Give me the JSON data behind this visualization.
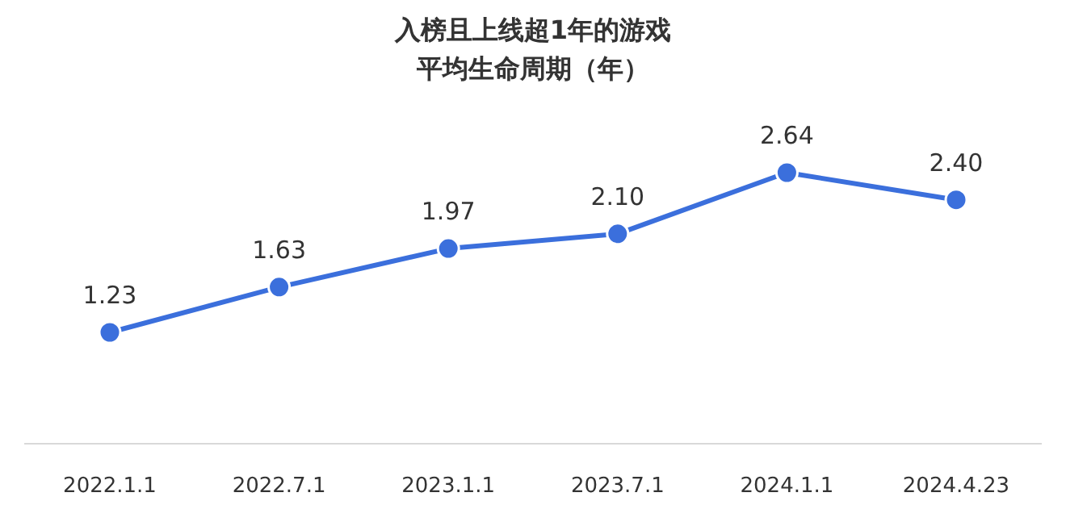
{
  "chart_data": {
    "type": "line",
    "title": "入榜且上线超1年的游戏",
    "subtitle": "平均生命周期（年）",
    "categories": [
      "2022.1.1",
      "2022.7.1",
      "2023.1.1",
      "2023.7.1",
      "2024.1.1",
      "2024.4.23"
    ],
    "series": [
      {
        "color": "#3b6fdc",
        "values": [
          1.23,
          1.63,
          1.97,
          2.1,
          2.64,
          2.4
        ],
        "value_labels": [
          "1.23",
          "1.63",
          "1.97",
          "2.10",
          "2.64",
          "2.40"
        ]
      }
    ],
    "marker": "circle"
  }
}
